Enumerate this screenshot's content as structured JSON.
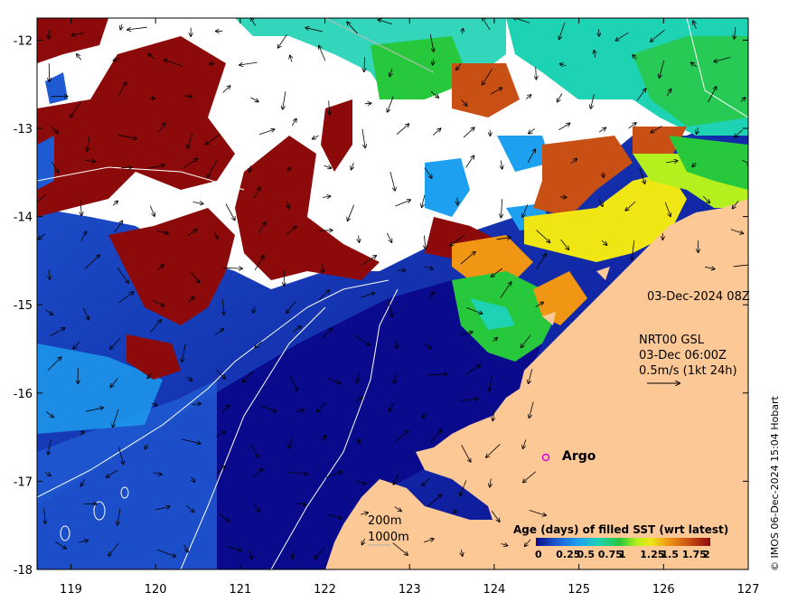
{
  "map": {
    "lon_range": [
      118.6,
      127.0
    ],
    "lat_range": [
      -18.0,
      -11.75
    ],
    "lon_ticks": [
      "119",
      "120",
      "121",
      "122",
      "123",
      "124",
      "125",
      "126",
      "127"
    ],
    "lat_ticks": [
      "-12",
      "-13",
      "-14",
      "-15",
      "-16",
      "-17",
      "-18"
    ],
    "land_color": "#fcc896",
    "no_data_color": "#ffffff"
  },
  "annotations": {
    "date": "03-Dec-2024 08Z",
    "model_line1": "NRT00 GSL",
    "model_line2": "03-Dec 06:00Z",
    "model_line3": "0.5m/s (1kt 24h)",
    "argo": "Argo",
    "depth_200": "200m",
    "depth_1000": "1000m",
    "credit": "© IMOS 06-Dec-2024 15:04 Hobart"
  },
  "legend": {
    "title": "Age (days) of filled SST (wrt latest)",
    "tick_labels": [
      "0",
      "0.25",
      "0.5",
      "0.75",
      "1",
      "1.25",
      "1.5",
      "1.75",
      "2"
    ],
    "colors": [
      "#0a0a8c",
      "#1e5ad2",
      "#1ea0f0",
      "#1ed2b4",
      "#28c83c",
      "#b4f01e",
      "#f0e614",
      "#f09614",
      "#c85014",
      "#8c0a0a"
    ]
  },
  "icons": {
    "argo_marker": "circle-marker",
    "current_arrow": "arrow-icon"
  }
}
